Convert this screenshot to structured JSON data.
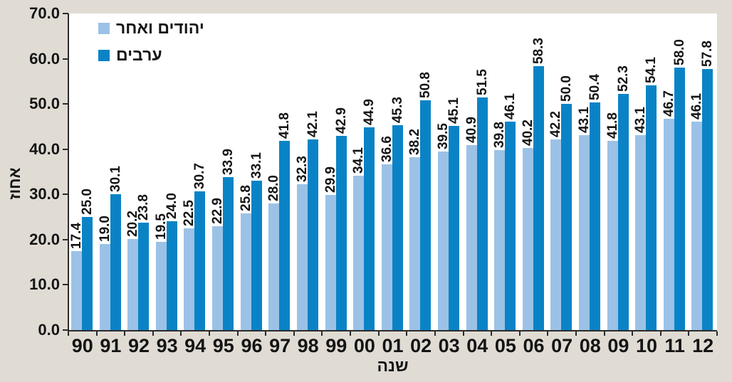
{
  "colors": {
    "background": "#e0dcd4",
    "plot_background": "#ffffff",
    "axis": "#2b2b2b",
    "text": "#141414",
    "series_light_blue": "#9bc2e6",
    "series_dark_blue": "#0a83c6"
  },
  "legend": {
    "items": [
      {
        "label": "יהודים ואחר",
        "color": "#9bc2e6"
      },
      {
        "label": "ערבים",
        "color": "#0a83c6"
      }
    ]
  },
  "chart_data": {
    "type": "bar",
    "title": "",
    "xlabel": "שנה",
    "ylabel": "אחוז",
    "ylim": [
      0,
      70
    ],
    "ytick_step": 10,
    "ytick_labels": [
      "0.0",
      "10.0",
      "20.0",
      "30.0",
      "40.0",
      "50.0",
      "60.0",
      "70.0"
    ],
    "grid": false,
    "legend_position": "top-left",
    "bar_value_labels": true,
    "bar_value_label_rotation": "vertical",
    "categories": [
      "90",
      "91",
      "92",
      "93",
      "94",
      "95",
      "96",
      "97",
      "98",
      "99",
      "00",
      "01",
      "02",
      "03",
      "04",
      "05",
      "06",
      "07",
      "08",
      "09",
      "10",
      "11",
      "12"
    ],
    "series": [
      {
        "name": "יהודים ואחר",
        "color": "#9bc2e6",
        "values": [
          17.4,
          19.0,
          20.2,
          19.5,
          22.5,
          22.9,
          25.8,
          28.0,
          32.3,
          29.9,
          34.1,
          36.6,
          38.2,
          39.5,
          40.9,
          39.8,
          40.2,
          42.2,
          43.1,
          41.8,
          43.1,
          46.7,
          46.1
        ]
      },
      {
        "name": "ערבים",
        "color": "#0a83c6",
        "values": [
          25.0,
          30.1,
          23.8,
          24.0,
          30.7,
          33.9,
          33.1,
          41.8,
          42.1,
          42.9,
          44.9,
          45.3,
          50.8,
          45.1,
          51.5,
          46.1,
          58.3,
          50.0,
          50.4,
          52.3,
          54.1,
          58.0,
          57.8
        ]
      }
    ]
  }
}
